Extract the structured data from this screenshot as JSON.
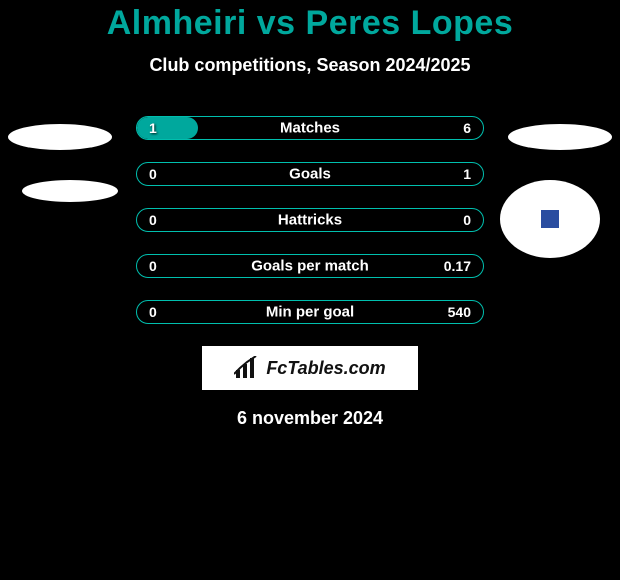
{
  "header": {
    "player_left": "Almheiri",
    "vs": "vs",
    "player_right": "Peres Lopes",
    "subtitle": "Club competitions, Season 2024/2025",
    "title_color": "#00a89d"
  },
  "avatars": {
    "left1": {
      "bg": "#ffffff"
    },
    "left2": {
      "bg": "#ffffff"
    },
    "right1": {
      "bg": "#ffffff"
    },
    "right2": {
      "bg": "#ffffff",
      "badge_color": "#2a4da0"
    }
  },
  "stats": {
    "bar_border_color": "#00bfae",
    "fill_color": "#00a89d",
    "rows": [
      {
        "label": "Matches",
        "left": "1",
        "right": "6",
        "left_pct": 17.5,
        "right_pct": 0
      },
      {
        "label": "Goals",
        "left": "0",
        "right": "1",
        "left_pct": 0,
        "right_pct": 0
      },
      {
        "label": "Hattricks",
        "left": "0",
        "right": "0",
        "left_pct": 0,
        "right_pct": 0
      },
      {
        "label": "Goals per match",
        "left": "0",
        "right": "0.17",
        "left_pct": 0,
        "right_pct": 0
      },
      {
        "label": "Min per goal",
        "left": "0",
        "right": "540",
        "left_pct": 0,
        "right_pct": 0
      }
    ]
  },
  "logo": {
    "text": "FcTables.com"
  },
  "footer": {
    "date": "6 november 2024"
  }
}
